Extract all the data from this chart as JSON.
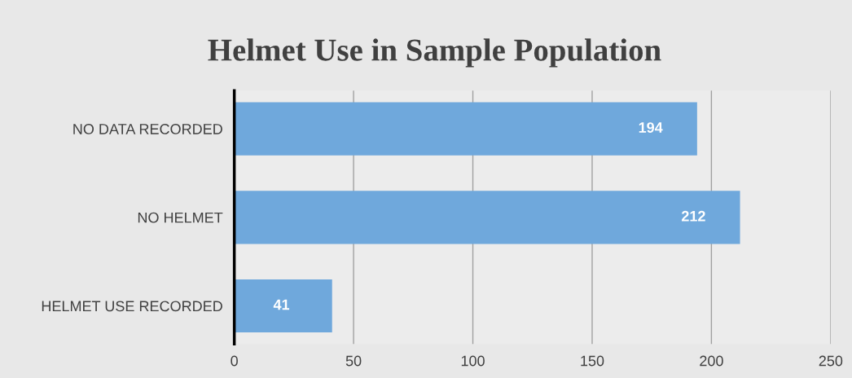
{
  "chart_data": {
    "type": "bar",
    "orientation": "horizontal",
    "title": "Helmet Use in Sample Population",
    "categories": [
      "NO DATA RECORDED",
      "NO HELMET",
      "HELMET USE RECORDED"
    ],
    "values": [
      194,
      212,
      41
    ],
    "color": "#6fa8dc",
    "xlim": [
      0,
      250
    ],
    "xticks": [
      0,
      50,
      100,
      150,
      200,
      250
    ],
    "grid": "x",
    "data_labels": true,
    "legend": false
  }
}
